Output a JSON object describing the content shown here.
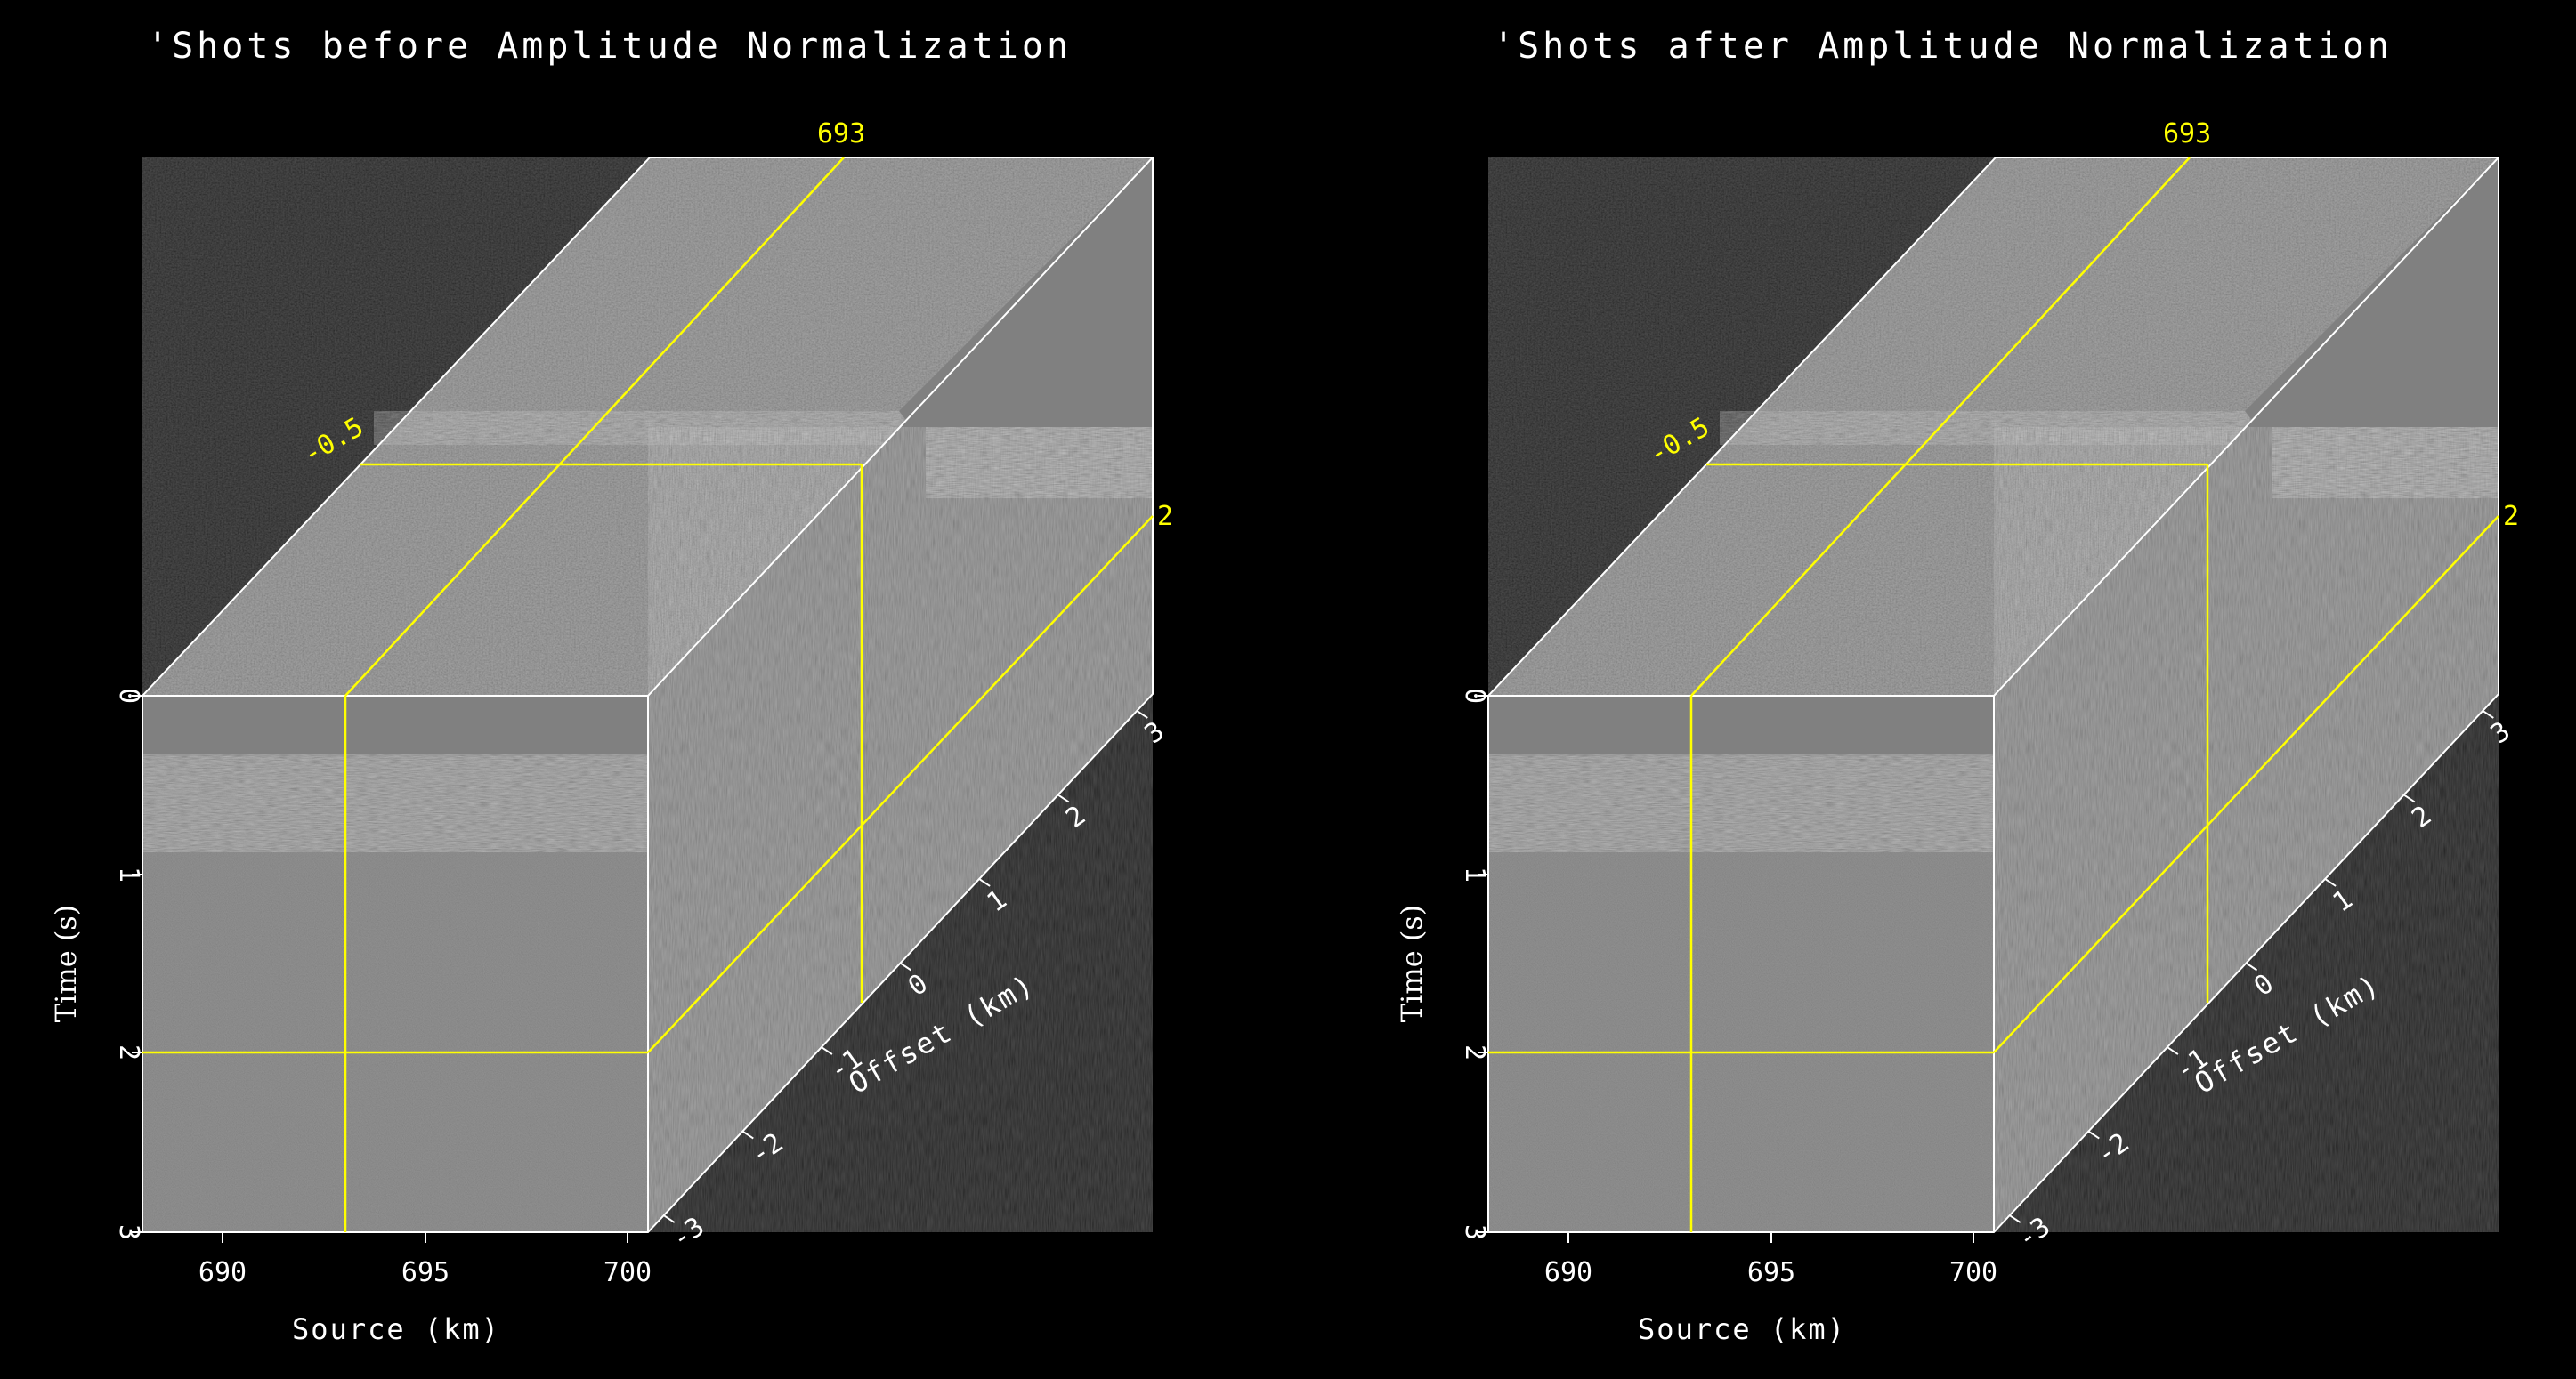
{
  "panels": [
    {
      "title": "'Shots before Amplitude Normalization",
      "x_label": "Source (km)",
      "x_ticks": [
        "690",
        "695",
        "700"
      ],
      "y_label": "Time (s)",
      "y_ticks": [
        "0",
        "1",
        "2",
        "3"
      ],
      "z_label": "Offset (km)",
      "z_ticks": [
        "-3",
        "-2",
        "-1",
        "0",
        "1",
        "2",
        "3"
      ],
      "slice_time": "2",
      "slice_source": "693",
      "slice_offset": "-0.5"
    },
    {
      "title": "'Shots after Amplitude Normalization",
      "x_label": "Source (km)",
      "x_ticks": [
        "690",
        "695",
        "700"
      ],
      "y_label": "Time (s)",
      "y_ticks": [
        "0",
        "1",
        "2",
        "3"
      ],
      "z_label": "Offset (km)",
      "z_ticks": [
        "-3",
        "-2",
        "-1",
        "0",
        "1",
        "2",
        "3"
      ],
      "slice_time": "2",
      "slice_source": "693",
      "slice_offset": "-0.5"
    }
  ],
  "colors": {
    "background": "#000000",
    "panel": "#808080",
    "annotation": "#ffff00",
    "text": "#ffffff"
  }
}
